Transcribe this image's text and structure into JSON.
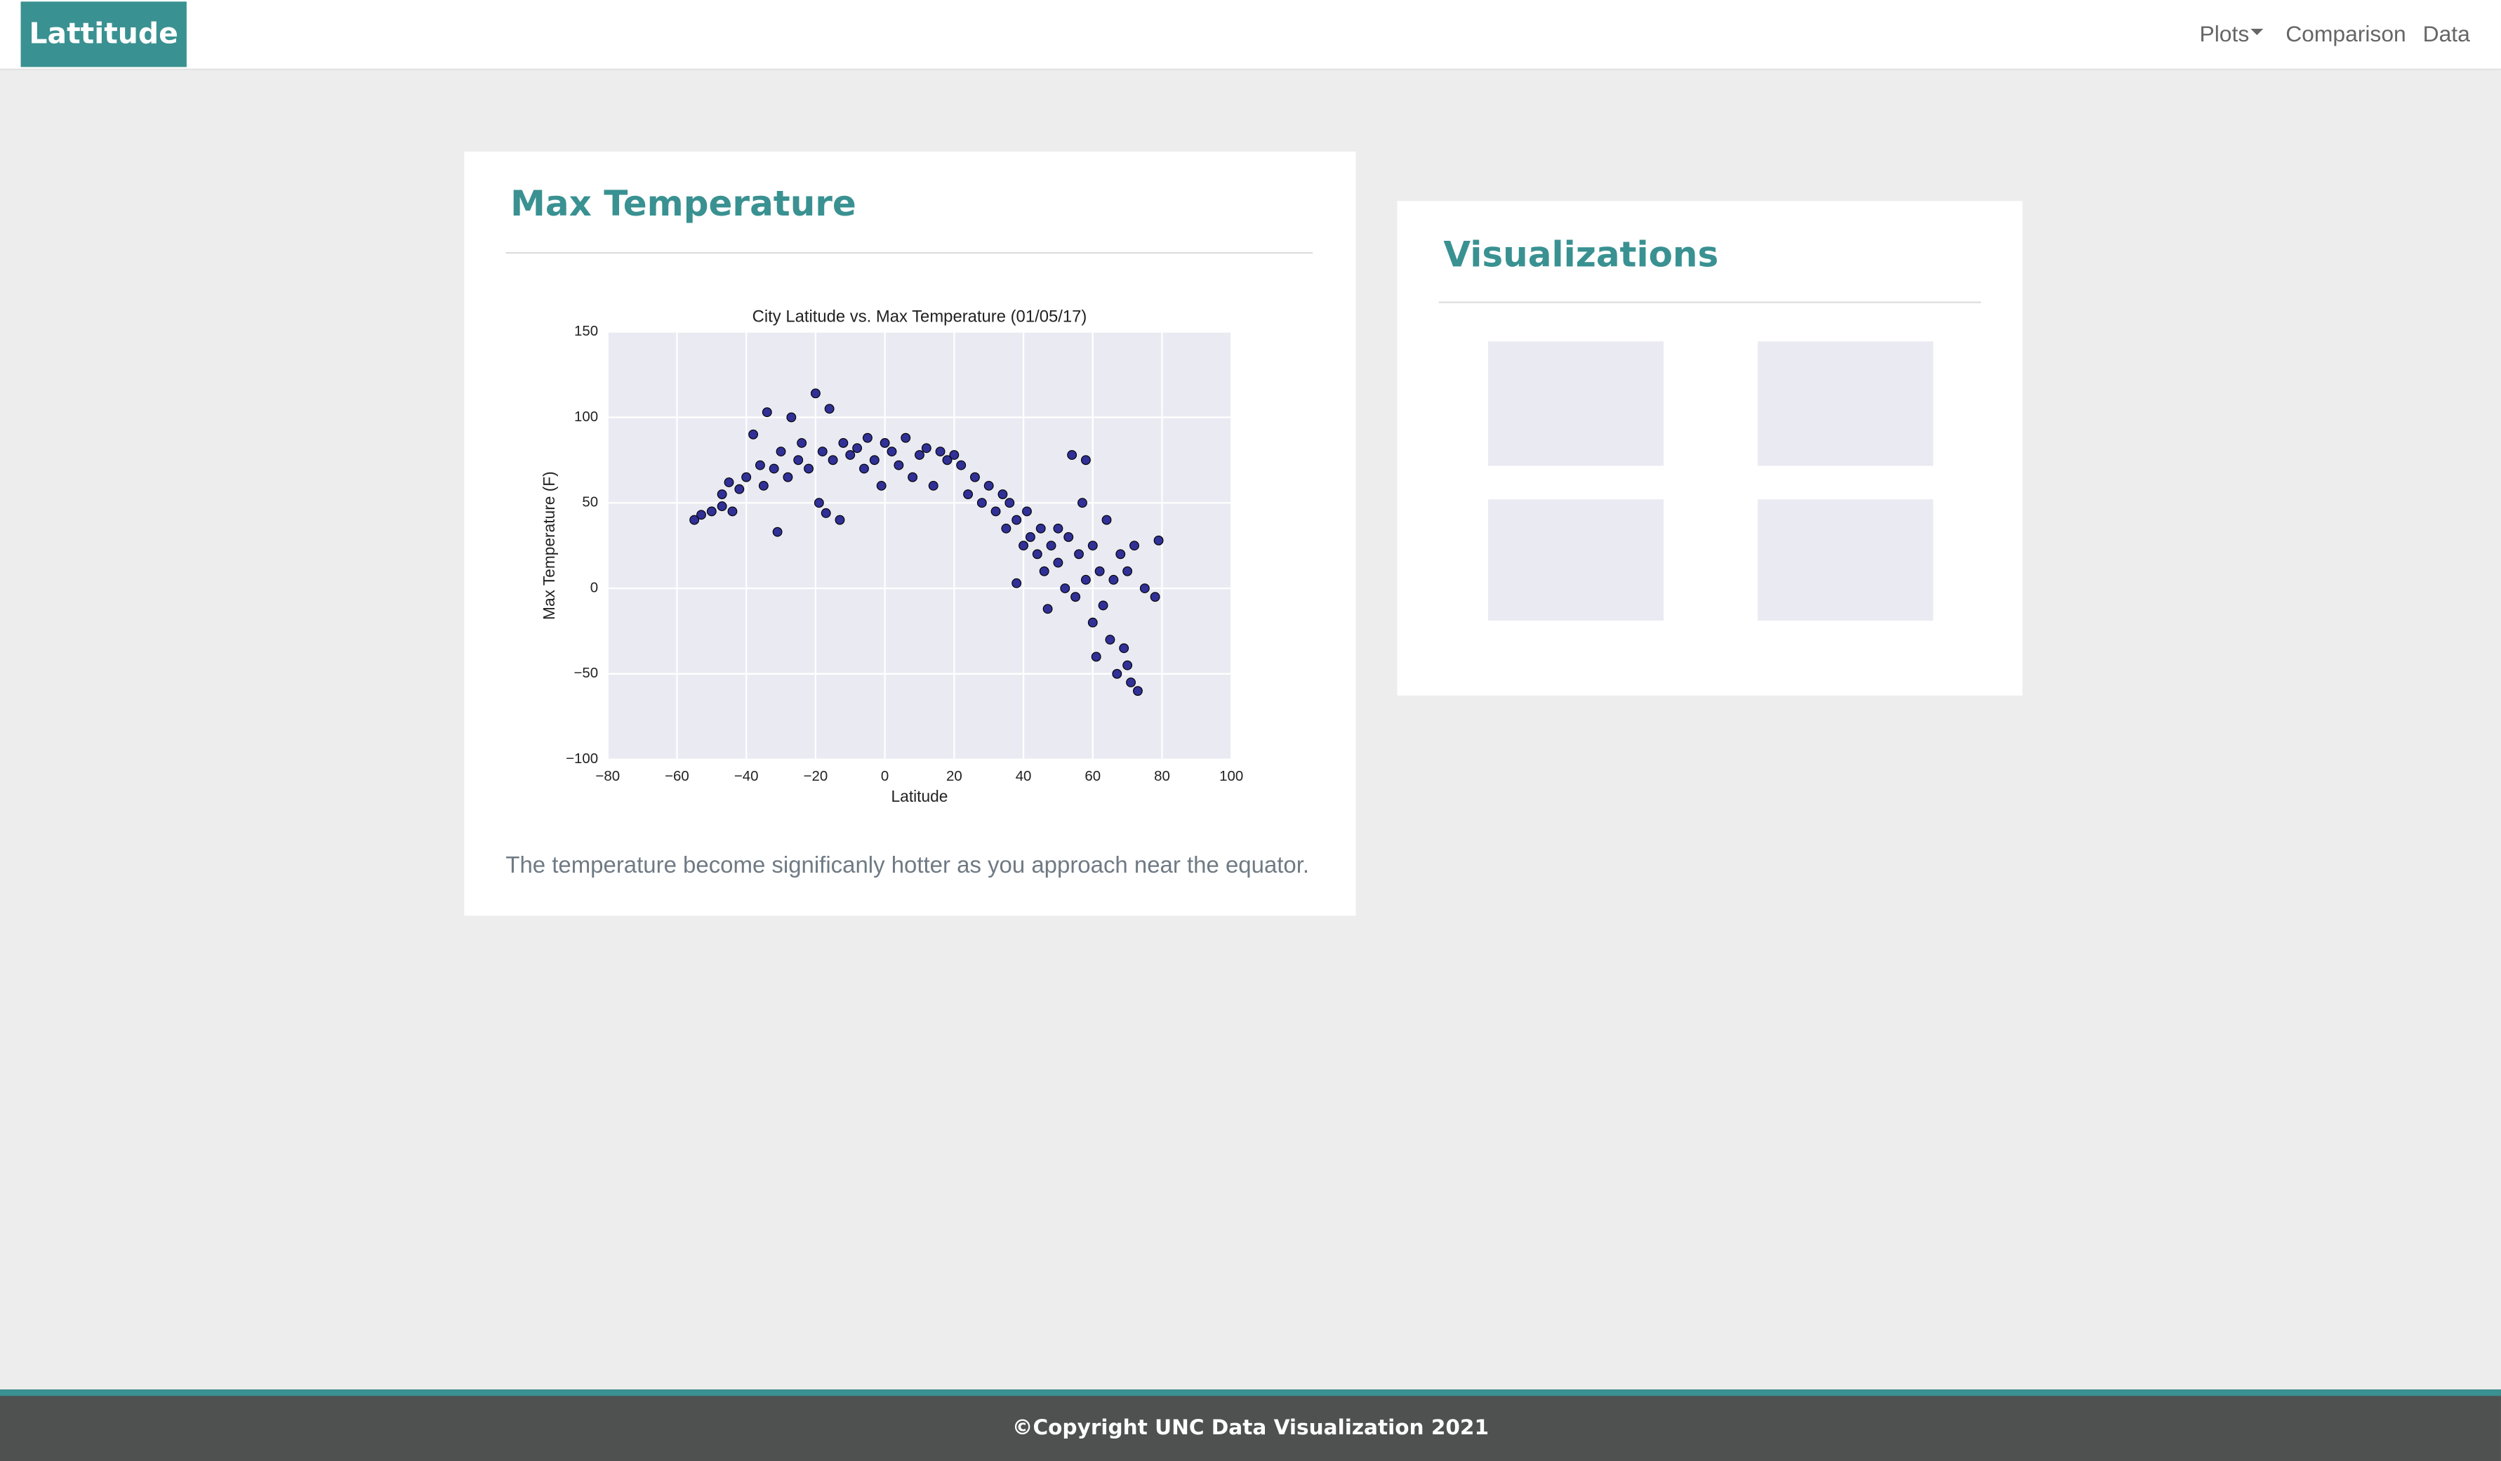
{
  "navbar": {
    "brand": "Lattitude",
    "links": [
      "Plots",
      "Comparison",
      "Data"
    ]
  },
  "panel": {
    "title": "Max Temperature",
    "description": "The temperature become significanly hotter as you approach near the equator."
  },
  "sidebar": {
    "title": "Visualizations"
  },
  "footer": {
    "text": "©Copyright UNC Data Visualization 2021"
  },
  "chart_data": {
    "type": "scatter",
    "title": "City Latitude vs. Max Temperature (01/05/17)",
    "x_label": "Latitude",
    "y_label": "Max Temperature (F)",
    "color": "#1c1c8c",
    "grid": true,
    "xlim": [
      -80,
      100
    ],
    "ylim": [
      -100,
      150
    ],
    "xticks": [
      {
        "value": -80,
        "label": "−80"
      },
      {
        "value": -60,
        "label": "−60"
      },
      {
        "value": -40,
        "label": "−40"
      },
      {
        "value": -20,
        "label": "−20"
      },
      0,
      20,
      40,
      60,
      80,
      100
    ],
    "yticks": [
      {
        "value": -100,
        "label": "−100"
      },
      {
        "value": -50,
        "label": "−50"
      },
      0,
      50,
      100,
      150
    ],
    "x": [
      -55,
      -53,
      -50,
      -47,
      -47,
      -45,
      -44,
      -42,
      -40,
      -38,
      -36,
      -35,
      -34,
      -32,
      -31,
      -30,
      -28,
      -27,
      -25,
      -24,
      -22,
      -20,
      -19,
      -18,
      -17,
      -16,
      -15,
      -13,
      -12,
      -10,
      -8,
      -6,
      -5,
      -3,
      -1,
      0,
      2,
      4,
      6,
      8,
      10,
      12,
      14,
      16,
      18,
      20,
      22,
      24,
      26,
      28,
      30,
      32,
      34,
      35,
      36,
      38,
      40,
      41,
      42,
      44,
      45,
      46,
      48,
      50,
      50,
      52,
      53,
      54,
      55,
      56,
      58,
      58,
      60,
      60,
      61,
      62,
      63,
      64,
      65,
      66,
      67,
      68,
      69,
      70,
      70,
      71,
      72,
      73,
      75,
      78,
      79,
      57,
      47,
      38
    ],
    "values": [
      40,
      43,
      45,
      55,
      48,
      62,
      45,
      58,
      65,
      90,
      72,
      60,
      103,
      70,
      33,
      80,
      65,
      100,
      75,
      85,
      70,
      114,
      50,
      80,
      44,
      105,
      75,
      40,
      85,
      78,
      82,
      70,
      88,
      75,
      60,
      85,
      80,
      72,
      88,
      65,
      78,
      82,
      60,
      80,
      75,
      78,
      72,
      55,
      65,
      50,
      60,
      45,
      55,
      35,
      50,
      40,
      25,
      45,
      30,
      20,
      35,
      10,
      25,
      15,
      35,
      0,
      30,
      78,
      -5,
      20,
      75,
      5,
      -20,
      25,
      -40,
      10,
      -10,
      40,
      -30,
      5,
      -50,
      20,
      -35,
      -45,
      10,
      -55,
      25,
      -60,
      0,
      -5,
      28,
      50,
      -12,
      3
    ]
  }
}
